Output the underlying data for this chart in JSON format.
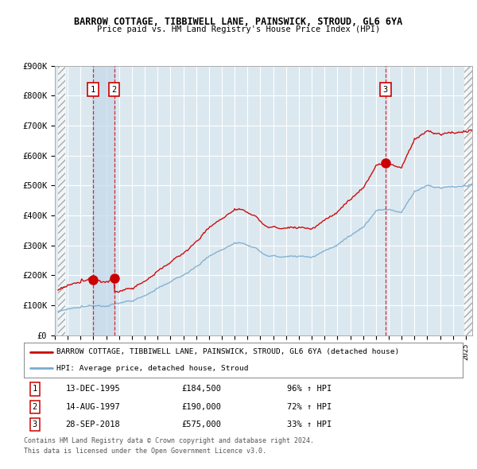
{
  "title": "BARROW COTTAGE, TIBBIWELL LANE, PAINSWICK, STROUD, GL6 6YA",
  "subtitle": "Price paid vs. HM Land Registry's House Price Index (HPI)",
  "ylim": [
    0,
    900000
  ],
  "yticks": [
    0,
    100000,
    200000,
    300000,
    400000,
    500000,
    600000,
    700000,
    800000,
    900000
  ],
  "ytick_labels": [
    "£0",
    "£100K",
    "£200K",
    "£300K",
    "£400K",
    "£500K",
    "£600K",
    "£700K",
    "£800K",
    "£900K"
  ],
  "xlim_start": 1993.25,
  "xlim_end": 2025.5,
  "legend_line1": "BARROW COTTAGE, TIBBIWELL LANE, PAINSWICK, STROUD, GL6 6YA (detached house)",
  "legend_line2": "HPI: Average price, detached house, Stroud",
  "sale1_date": "13-DEC-1995",
  "sale1_price": "£184,500",
  "sale1_hpi": "96% ↑ HPI",
  "sale1_x": 1995.96,
  "sale1_y": 184500,
  "sale2_date": "14-AUG-1997",
  "sale2_price": "£190,000",
  "sale2_hpi": "72% ↑ HPI",
  "sale2_x": 1997.62,
  "sale2_y": 190000,
  "sale3_date": "28-SEP-2018",
  "sale3_price": "£575,000",
  "sale3_hpi": "33% ↑ HPI",
  "sale3_x": 2018.74,
  "sale3_y": 575000,
  "footer1": "Contains HM Land Registry data © Crown copyright and database right 2024.",
  "footer2": "This data is licensed under the Open Government Licence v3.0.",
  "red_color": "#cc0000",
  "blue_color": "#7aacce",
  "grid_color": "#cccccc",
  "plot_bg": "#dce8f0"
}
